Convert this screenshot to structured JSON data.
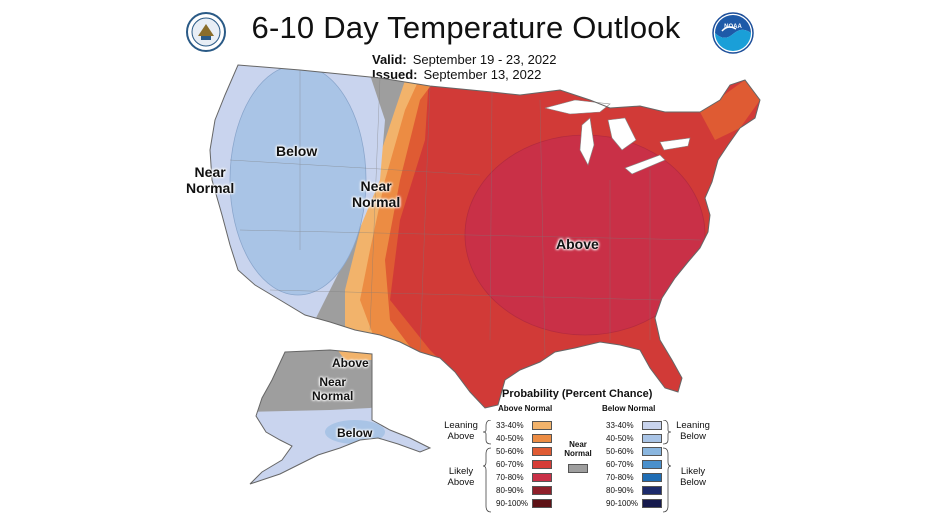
{
  "header": {
    "title": "6-10 Day Temperature Outlook",
    "valid_label": "Valid:",
    "valid_value": "September 19 - 23, 2022",
    "issued_label": "Issued:",
    "issued_value": "September 13, 2022"
  },
  "logos": {
    "left": "commerce-seal",
    "right": "NOAA",
    "right_text": "NOAA"
  },
  "map_labels": {
    "west_near_normal": [
      "Near",
      "Normal"
    ],
    "below": "Below",
    "plains_near_normal": [
      "Near",
      "Normal"
    ],
    "above": "Above",
    "alaska_above": "Above",
    "alaska_near_normal": [
      "Near",
      "Normal"
    ],
    "alaska_below": "Below"
  },
  "colors": {
    "near_normal": "#9e9e9e",
    "below_33_40": "#c9d4ee",
    "below_40_50": "#a9c4e6",
    "below_50_60": "#8ab6df",
    "above_33_40": "#f2b36b",
    "above_40_50": "#ec8c43",
    "above_50_60": "#df5b33",
    "above_60_70": "#d13a37",
    "above_70_80": "#c93047"
  },
  "legend": {
    "title": "Probability (Percent Chance)",
    "above_head": "Above Normal",
    "below_head": "Below Normal",
    "near_normal": [
      "Near",
      "Normal"
    ],
    "leaning_above": [
      "Leaning",
      "Above"
    ],
    "likely_above": [
      "Likely",
      "Above"
    ],
    "leaning_below": [
      "Leaning",
      "Below"
    ],
    "likely_below": [
      "Likely",
      "Below"
    ],
    "above_rows": [
      {
        "label": "33-40%",
        "color": "#f2b36b"
      },
      {
        "label": "40-50%",
        "color": "#ec8c43"
      },
      {
        "label": "50-60%",
        "color": "#df5b33"
      },
      {
        "label": "60-70%",
        "color": "#d63d37"
      },
      {
        "label": "70-80%",
        "color": "#c93047"
      },
      {
        "label": "80-90%",
        "color": "#8e1f2a"
      },
      {
        "label": "90-100%",
        "color": "#5e1216"
      }
    ],
    "below_rows": [
      {
        "label": "33-40%",
        "color": "#c9d4ee"
      },
      {
        "label": "40-50%",
        "color": "#a9c4e6"
      },
      {
        "label": "50-60%",
        "color": "#8ab6df"
      },
      {
        "label": "60-70%",
        "color": "#4a90cc"
      },
      {
        "label": "70-80%",
        "color": "#1f6db4"
      },
      {
        "label": "80-90%",
        "color": "#1d2b6b"
      },
      {
        "label": "90-100%",
        "color": "#161a4d"
      }
    ]
  }
}
